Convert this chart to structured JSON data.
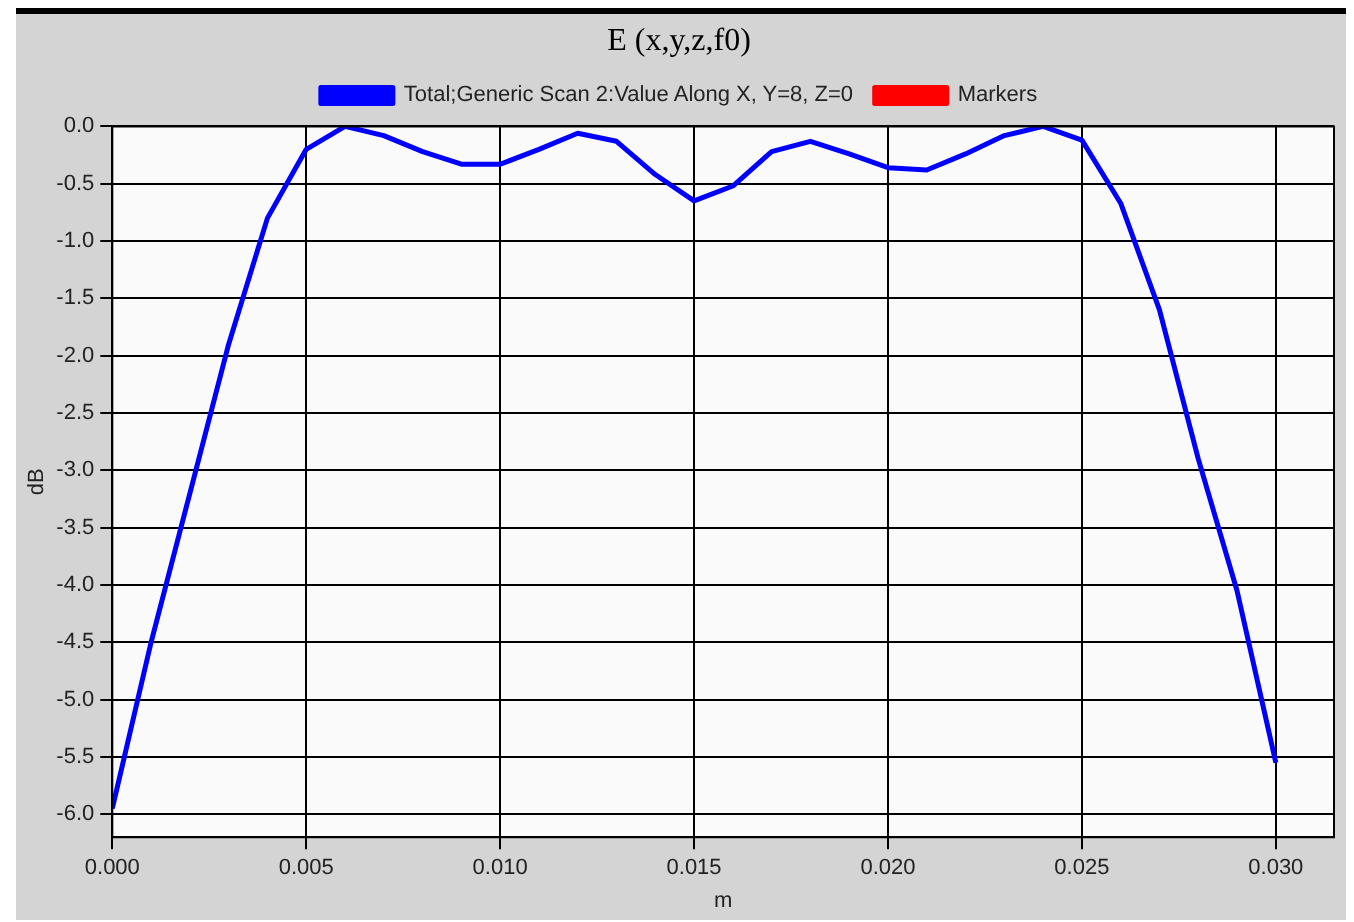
{
  "chart_data": {
    "type": "line",
    "title": "E (x,y,z,f0)",
    "xlabel": "m",
    "ylabel": "dB",
    "x": [
      0,
      0.001,
      0.002,
      0.003,
      0.004,
      0.005,
      0.006,
      0.007,
      0.008,
      0.009,
      0.01,
      0.011,
      0.012,
      0.013,
      0.014,
      0.015,
      0.016,
      0.017,
      0.018,
      0.019,
      0.02,
      0.021,
      0.022,
      0.023,
      0.024,
      0.025,
      0.026,
      0.027,
      0.028,
      0.029,
      0.03
    ],
    "series": [
      {
        "name": "Total;Generic Scan 2:Value Along X, Y=8, Z=0",
        "color": "#0000ff",
        "values": [
          -5.95,
          -4.5,
          -3.2,
          -1.9,
          -0.8,
          -0.2,
          0.0,
          -0.08,
          -0.22,
          -0.33,
          -0.33,
          -0.2,
          -0.06,
          -0.13,
          -0.42,
          -0.65,
          -0.52,
          -0.22,
          -0.13,
          -0.24,
          -0.36,
          -0.38,
          -0.24,
          -0.08,
          0.0,
          -0.12,
          -0.67,
          -1.6,
          -2.9,
          -4.05,
          -5.55
        ]
      },
      {
        "name": "Markers",
        "color": "#ff0000",
        "values": [
          null,
          null,
          null,
          null,
          null,
          null,
          null,
          null,
          null,
          null,
          null,
          null,
          null,
          null,
          null,
          null,
          null,
          null,
          null,
          null,
          null,
          null,
          null,
          null,
          null,
          null,
          null,
          null,
          null,
          null,
          null
        ]
      }
    ],
    "xlim": [
      0,
      0.0315
    ],
    "xticks": [
      {
        "value": 0,
        "label": "0.000"
      },
      {
        "value": 0.005,
        "label": "0.005"
      },
      {
        "value": 0.01,
        "label": "0.010"
      },
      {
        "value": 0.015,
        "label": "0.015"
      },
      {
        "value": 0.02,
        "label": "0.020"
      },
      {
        "value": 0.025,
        "label": "0.025"
      },
      {
        "value": 0.03,
        "label": "0.030"
      }
    ],
    "ylim": [
      -6.2,
      0
    ],
    "yticks": [
      {
        "value": 0,
        "label": "0.0"
      },
      {
        "value": -0.5,
        "label": "-0.5"
      },
      {
        "value": -1,
        "label": "-1.0"
      },
      {
        "value": -1.5,
        "label": "-1.5"
      },
      {
        "value": -2,
        "label": "-2.0"
      },
      {
        "value": -2.5,
        "label": "-2.5"
      },
      {
        "value": -3,
        "label": "-3.0"
      },
      {
        "value": -3.5,
        "label": "-3.5"
      },
      {
        "value": -4,
        "label": "-4.0"
      },
      {
        "value": -4.5,
        "label": "-4.5"
      },
      {
        "value": -5,
        "label": "-5.0"
      },
      {
        "value": -5.5,
        "label": "-5.5"
      },
      {
        "value": -6,
        "label": "-6.0"
      }
    ],
    "grid": true,
    "legend": "top",
    "marker": "none",
    "line_style": "solid"
  }
}
